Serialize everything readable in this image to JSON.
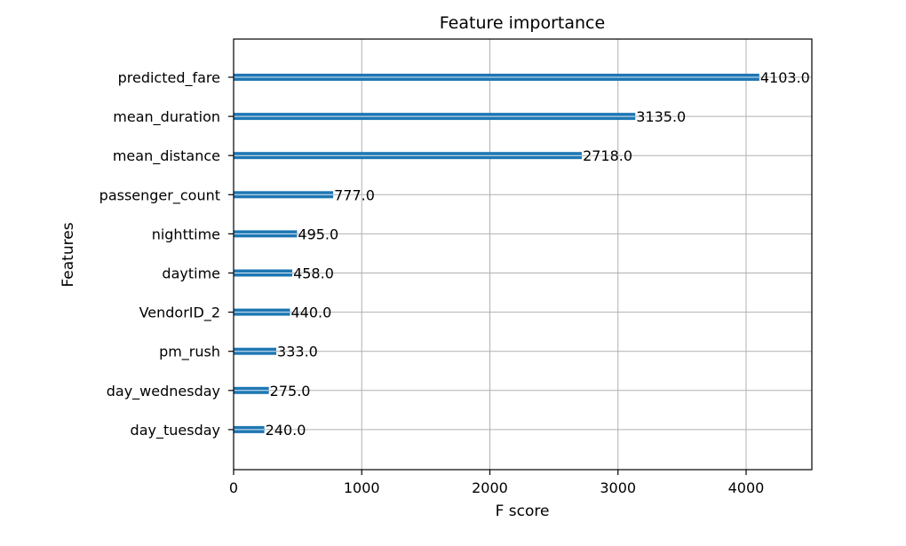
{
  "chart_data": {
    "type": "bar",
    "orientation": "horizontal",
    "title": "Feature importance",
    "xlabel": "F score",
    "ylabel": "Features",
    "categories": [
      "predicted_fare",
      "mean_duration",
      "mean_distance",
      "passenger_count",
      "nighttime",
      "daytime",
      "VendorID_2",
      "pm_rush",
      "day_wednesday",
      "day_tuesday"
    ],
    "values": [
      4103.0,
      3135.0,
      2718.0,
      777.0,
      495.0,
      458.0,
      440.0,
      333.0,
      275.0,
      240.0
    ],
    "data_labels": [
      "4103.0",
      "3135.0",
      "2718.0",
      "777.0",
      "495.0",
      "458.0",
      "440.0",
      "333.0",
      "275.0",
      "240.0"
    ],
    "xlim": [
      0,
      4513
    ],
    "xticks": [
      0,
      1000,
      2000,
      3000,
      4000
    ],
    "xtick_labels": [
      "0",
      "1000",
      "2000",
      "3000",
      "4000"
    ],
    "grid": true,
    "bar_color": "#1f77b4"
  }
}
